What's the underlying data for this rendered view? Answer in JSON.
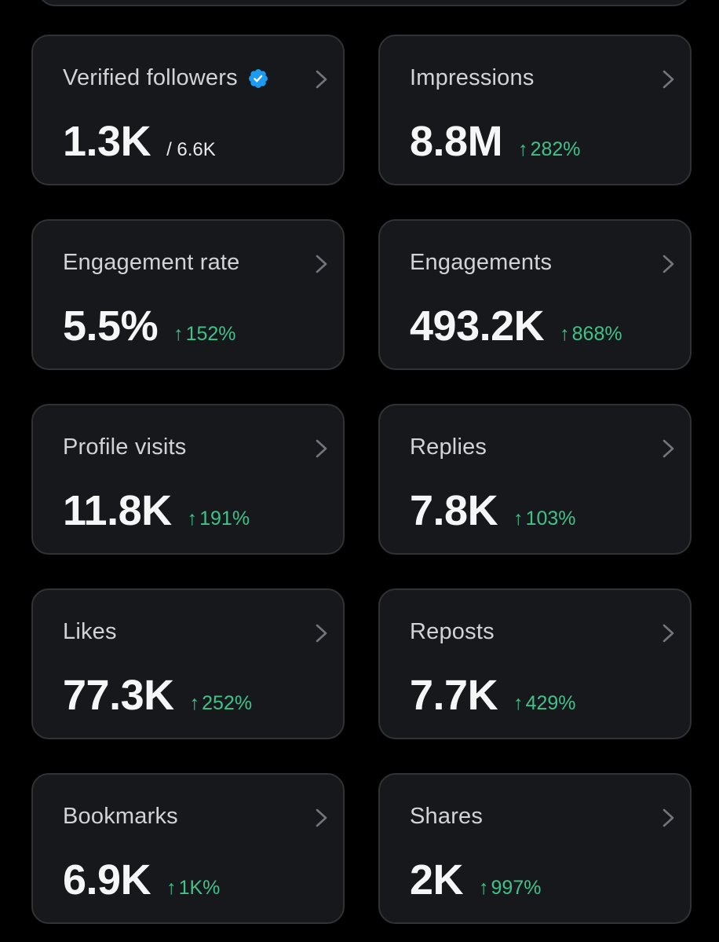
{
  "colors": {
    "background": "#000000",
    "card_background": "#16181c",
    "card_border": "#2f3336",
    "label_text": "#d1d3d6",
    "value_text": "#f5f6f7",
    "positive_change": "#3fc28a",
    "verified_blue": "#1d9bf0"
  },
  "icons": {
    "chevron": "chevron-right-icon",
    "verified": "verified-badge-icon",
    "arrow_up": "arrow-up-icon"
  },
  "metrics": {
    "verified_followers": {
      "label": "Verified followers",
      "value": "1.3K",
      "sub": "/ 6.6K"
    },
    "impressions": {
      "label": "Impressions",
      "value": "8.8M",
      "arrow": "↑",
      "change": "282%"
    },
    "engagement_rate": {
      "label": "Engagement rate",
      "value": "5.5%",
      "arrow": "↑",
      "change": "152%"
    },
    "engagements": {
      "label": "Engagements",
      "value": "493.2K",
      "arrow": "↑",
      "change": "868%"
    },
    "profile_visits": {
      "label": "Profile visits",
      "value": "11.8K",
      "arrow": "↑",
      "change": "191%"
    },
    "replies": {
      "label": "Replies",
      "value": "7.8K",
      "arrow": "↑",
      "change": "103%"
    },
    "likes": {
      "label": "Likes",
      "value": "77.3K",
      "arrow": "↑",
      "change": "252%"
    },
    "reposts": {
      "label": "Reposts",
      "value": "7.7K",
      "arrow": "↑",
      "change": "429%"
    },
    "bookmarks": {
      "label": "Bookmarks",
      "value": "6.9K",
      "arrow": "↑",
      "change": "1K%"
    },
    "shares": {
      "label": "Shares",
      "value": "2K",
      "arrow": "↑",
      "change": "997%"
    }
  }
}
